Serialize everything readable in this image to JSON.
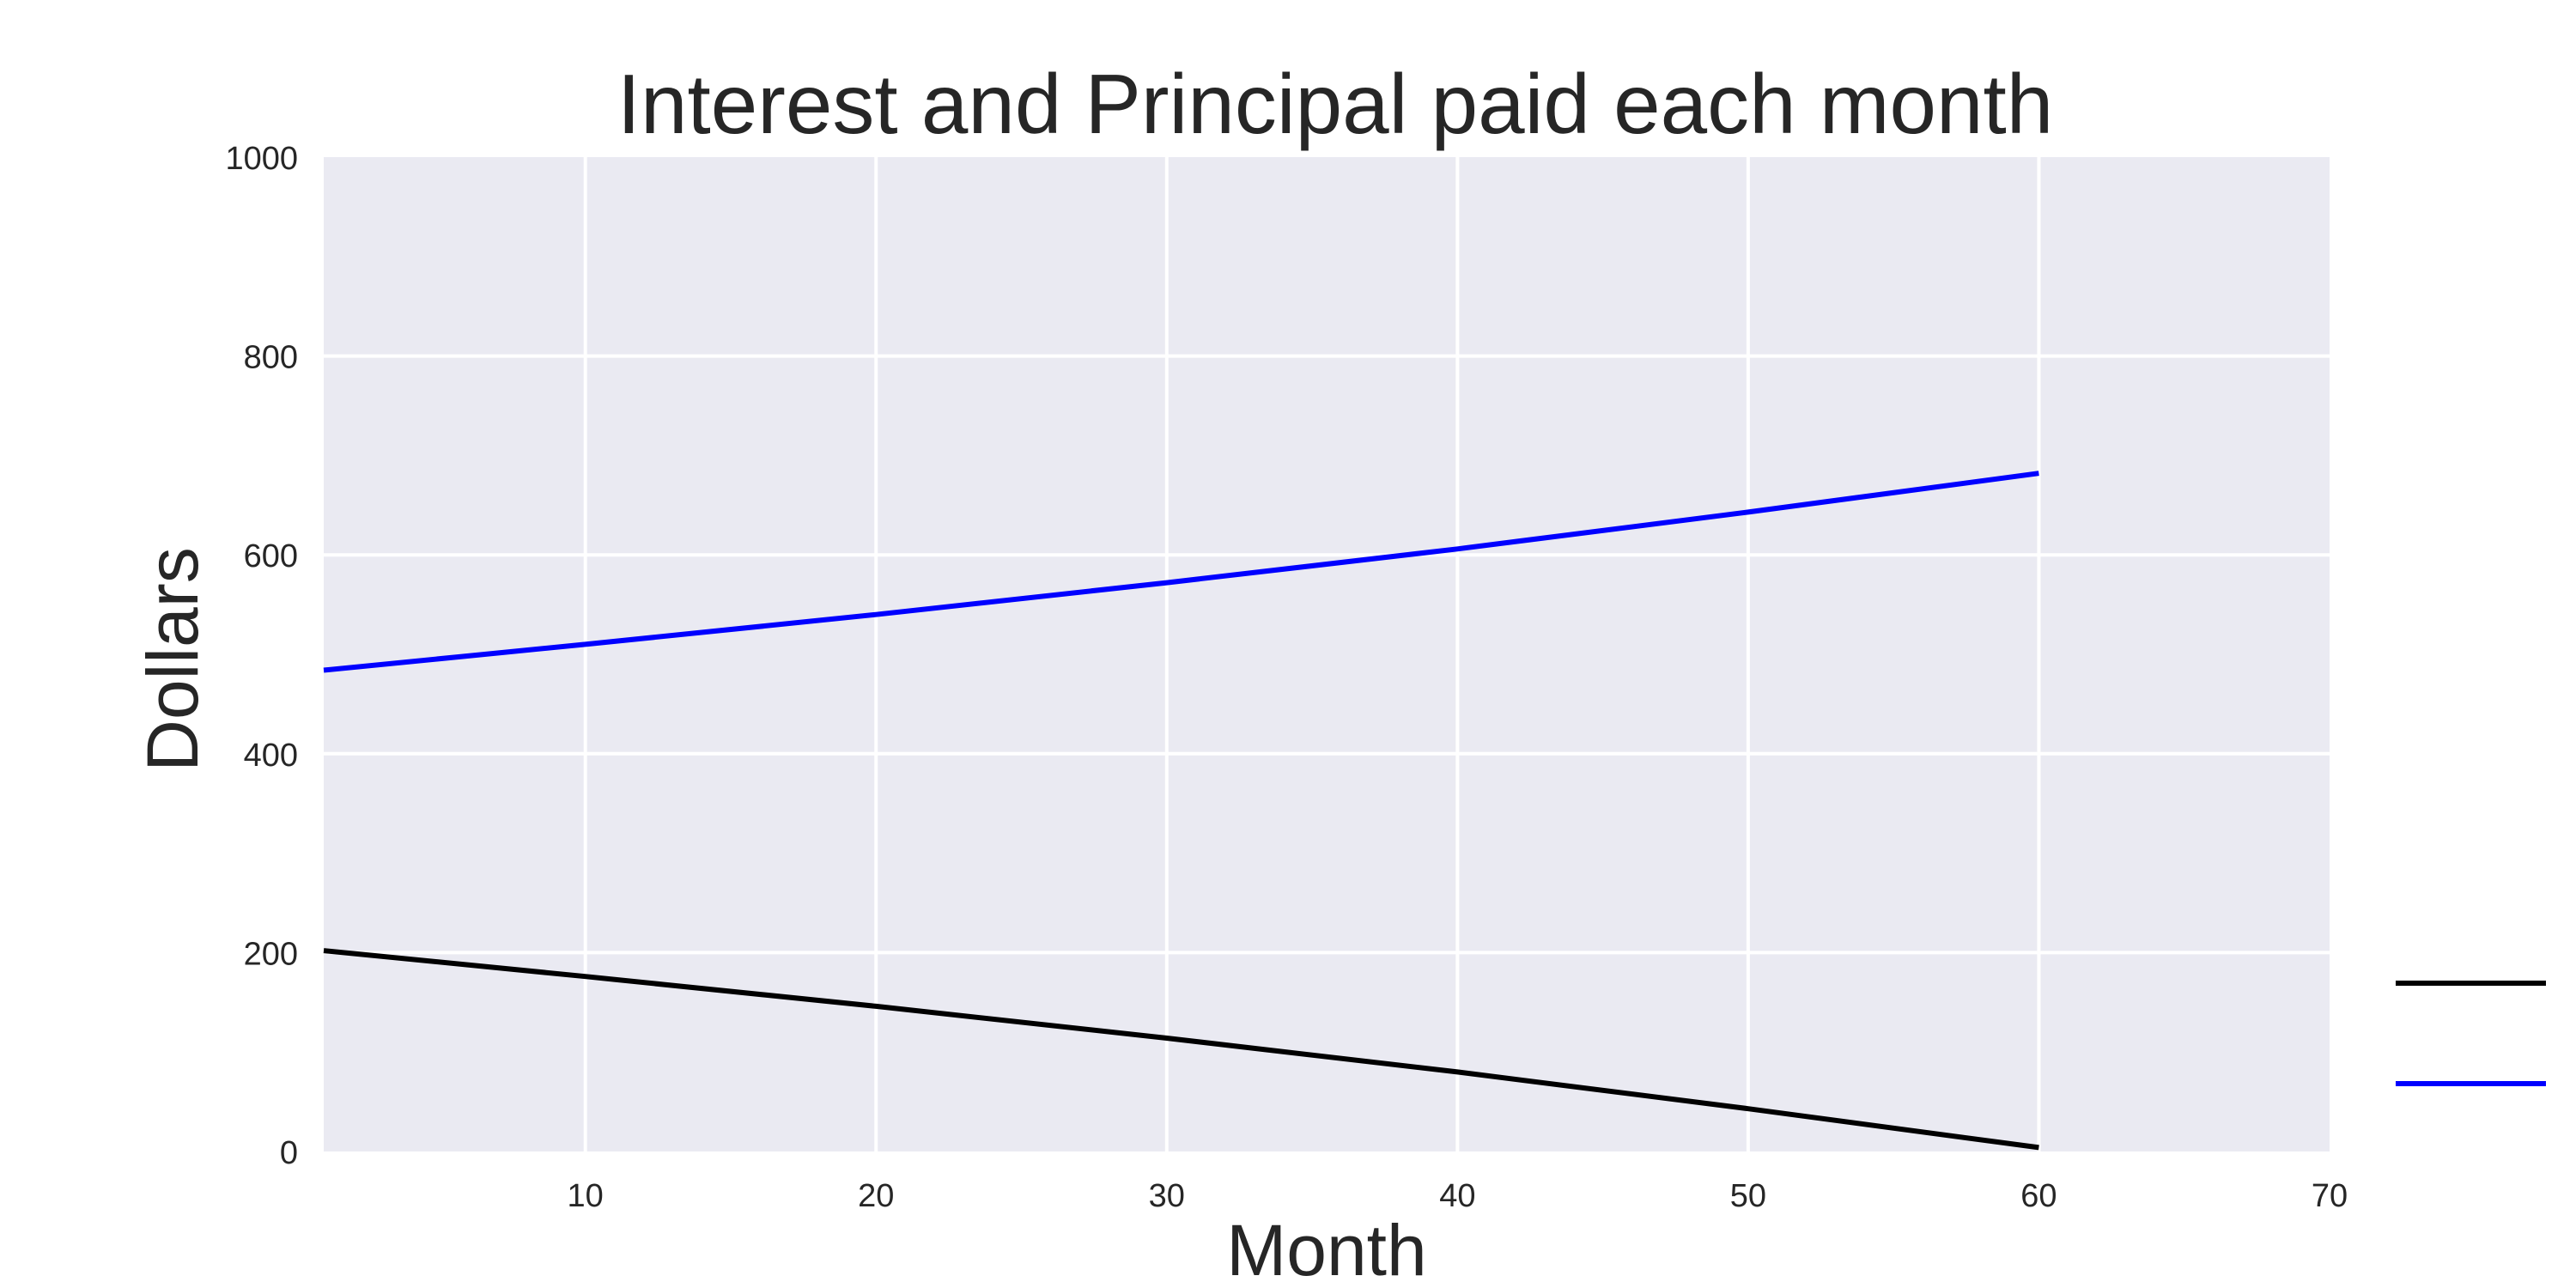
{
  "chart_data": {
    "type": "line",
    "title": "Interest and Principal paid each month",
    "xlabel": "Month",
    "ylabel": "Dollars",
    "xlim": [
      1,
      70
    ],
    "ylim": [
      0,
      1000
    ],
    "x_ticks": [
      10,
      20,
      30,
      40,
      50,
      60,
      70
    ],
    "y_ticks": [
      0,
      200,
      400,
      600,
      800,
      1000
    ],
    "grid": true,
    "background": "#EAEAF2",
    "grid_color": "#FFFFFF",
    "legend_position": "bottom-right outside",
    "series": [
      {
        "color": "#000000",
        "x": [
          1,
          10,
          20,
          30,
          40,
          50,
          60
        ],
        "values": [
          202,
          176,
          146,
          114,
          80,
          43,
          4
        ]
      },
      {
        "color": "#0000FF",
        "x": [
          1,
          10,
          20,
          30,
          40,
          50,
          60
        ],
        "values": [
          484,
          510,
          540,
          572,
          606,
          643,
          682
        ]
      }
    ]
  }
}
